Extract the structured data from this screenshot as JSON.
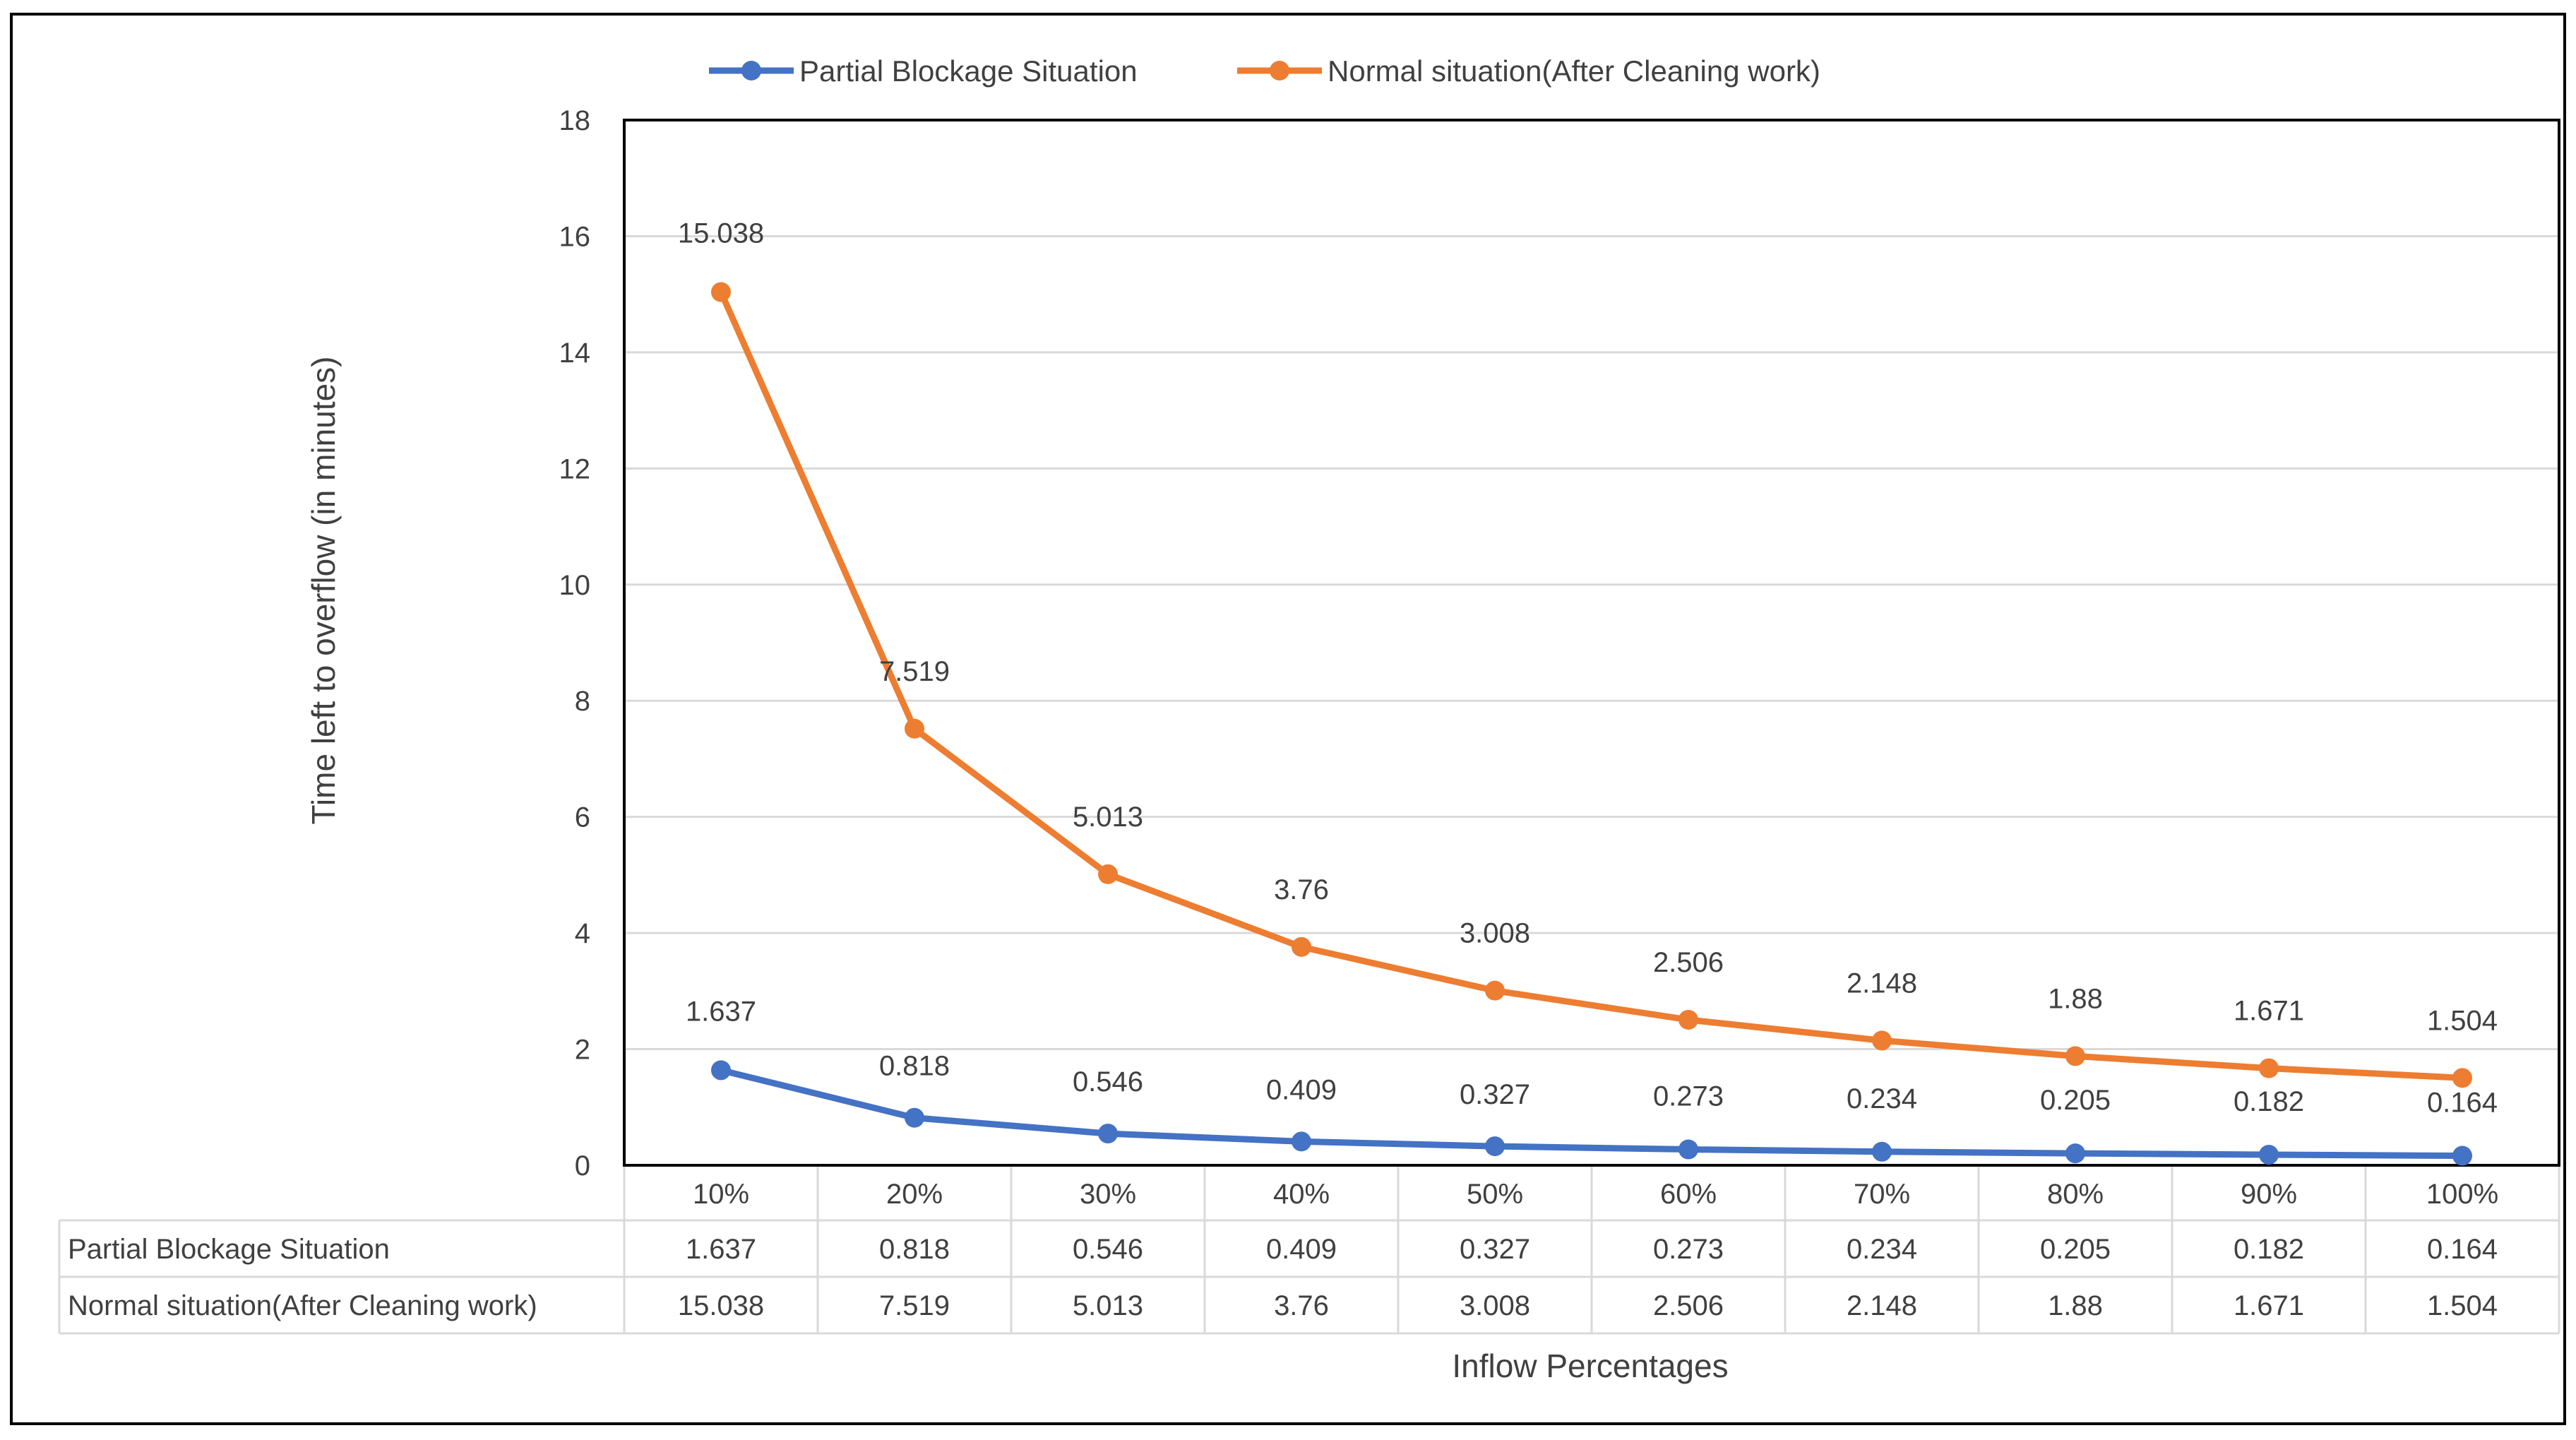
{
  "chart_data": {
    "type": "line",
    "categories": [
      "10%",
      "20%",
      "30%",
      "40%",
      "50%",
      "60%",
      "70%",
      "80%",
      "90%",
      "100%"
    ],
    "series": [
      {
        "name": "Partial Blockage Situation",
        "color": "#4472C4",
        "values": [
          1.637,
          0.818,
          0.546,
          0.409,
          0.327,
          0.273,
          0.234,
          0.205,
          0.182,
          0.164
        ],
        "labels": [
          "1.637",
          "0.818",
          "0.546",
          "0.409",
          "0.327",
          "0.273",
          "0.234",
          "0.205",
          "0.182",
          "0.164"
        ]
      },
      {
        "name": "Normal situation(After Cleaning work)",
        "color": "#ED7D31",
        "values": [
          15.038,
          7.519,
          5.013,
          3.76,
          3.008,
          2.506,
          2.148,
          1.88,
          1.671,
          1.504
        ],
        "labels": [
          "15.038",
          "7.519",
          "5.013",
          "3.76",
          "3.008",
          "2.506",
          "2.148",
          "1.88",
          "1.671",
          "1.504"
        ]
      }
    ],
    "ylim": [
      0,
      18
    ],
    "yticks": [
      "0",
      "2",
      "4",
      "6",
      "8",
      "10",
      "12",
      "14",
      "16",
      "18"
    ],
    "xlabel": "Inflow Percentages",
    "ylabel": "Time left to overflow (in minutes)",
    "grid": true,
    "legend_position": "top",
    "data_table": true
  }
}
